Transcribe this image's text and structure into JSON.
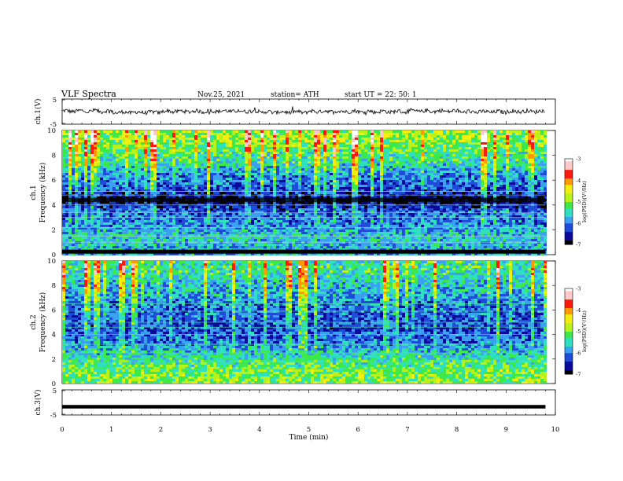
{
  "header": {
    "title": "VLF  Spectra",
    "date": "Nov.25, 2021",
    "station": "station= ATH",
    "start": "start  UT  =    22: 50: 1"
  },
  "chart_data": [
    {
      "type": "line",
      "panel": "ch1-waveform",
      "ylabel": "ch.1(V)",
      "ylim": [
        -5,
        5
      ],
      "yticks": [
        "5",
        "-5"
      ],
      "x": [
        0,
        1,
        2,
        3,
        4,
        5,
        6,
        7,
        8,
        9,
        9.8
      ],
      "y": [
        0.2,
        -0.3,
        0.1,
        0.2,
        -0.2,
        0.1,
        0.0,
        0.2,
        -0.1,
        0.1,
        0.0
      ],
      "color": "#000000"
    },
    {
      "type": "heatmap",
      "panel": "ch1-spectrogram",
      "ylabel": "ch.1\nFrequency (kHz)",
      "ylim": [
        0,
        10
      ],
      "yticks": [
        "0",
        "2",
        "4",
        "6",
        "8",
        "10"
      ],
      "xlim": [
        0,
        9.8
      ],
      "colorbar": {
        "label": "log(PSD)(V²/Hz)",
        "range": [
          -7,
          -3
        ],
        "ticks": [
          "-3",
          "-4",
          "-5",
          "-6",
          "-7"
        ]
      },
      "profile_khz": [
        0.5,
        1.5,
        2.5,
        3.5,
        4.5,
        5.5,
        6.5,
        7.5,
        8.5,
        9.5
      ],
      "profile_log_psd": [
        -5.8,
        -5.6,
        -6.0,
        -6.2,
        -6.9,
        -6.2,
        -6.0,
        -5.5,
        -5.2,
        -4.9
      ]
    },
    {
      "type": "heatmap",
      "panel": "ch2-spectrogram",
      "ylabel": "ch.2\nFrequency (kHz)",
      "ylim": [
        0,
        10
      ],
      "yticks": [
        "0",
        "2",
        "4",
        "6",
        "8",
        "10"
      ],
      "xlim": [
        0,
        9.8
      ],
      "colorbar": {
        "label": "log(PSD)(V²/Hz)",
        "range": [
          -7,
          -3
        ],
        "ticks": [
          "-3",
          "-4",
          "-5",
          "-6",
          "-7"
        ]
      },
      "profile_khz": [
        0.5,
        1.5,
        2.5,
        3.5,
        4.5,
        5.5,
        6.5,
        7.5,
        8.5,
        9.5
      ],
      "profile_log_psd": [
        -5.0,
        -5.2,
        -5.6,
        -6.1,
        -6.3,
        -6.2,
        -6.1,
        -5.8,
        -5.6,
        -5.4
      ]
    },
    {
      "type": "line",
      "panel": "ch3-waveform",
      "ylabel": "ch.3(V)",
      "ylim": [
        -5,
        5
      ],
      "yticks": [
        "5",
        "-5"
      ],
      "x": [
        0,
        9.8
      ],
      "y": [
        -1.7,
        -1.7
      ],
      "color": "#000000"
    }
  ],
  "x_axis": {
    "label": "Time  (min)",
    "ticks": [
      "0",
      "1",
      "2",
      "3",
      "4",
      "5",
      "6",
      "7",
      "8",
      "9",
      "10"
    ],
    "range": [
      0,
      10
    ]
  },
  "colors": {
    "axis": "#000000",
    "background": "#ffffff",
    "trace": "#000000"
  },
  "colormap": [
    "#000000",
    "#0a0a9a",
    "#1e4bd8",
    "#3aa0f0",
    "#2ee0c0",
    "#3de84a",
    "#b8f21a",
    "#f2ee10",
    "#ff9a00",
    "#ff1a10",
    "#ffc8c8",
    "#ffffff"
  ]
}
